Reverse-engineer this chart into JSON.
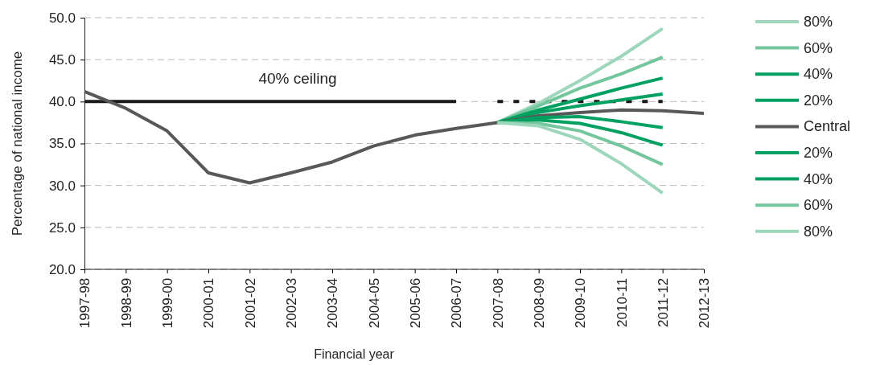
{
  "chart_data": {
    "type": "line",
    "xlabel": "Financial year",
    "ylabel": "Percentage of national income",
    "categories": [
      "1997-98",
      "1998-99",
      "1999-00",
      "2000-01",
      "2001-02",
      "2002-03",
      "2003-04",
      "2004-05",
      "2005-06",
      "2006-07",
      "2007-08",
      "2008-09",
      "2009-10",
      "2010-11",
      "2011-12",
      "2012-13"
    ],
    "ylim": [
      20,
      50
    ],
    "yticks": [
      {
        "value": 20,
        "label": "20.0"
      },
      {
        "value": 25,
        "label": "25.0"
      },
      {
        "value": 30,
        "label": "30.0"
      },
      {
        "value": 35,
        "label": "35.0"
      },
      {
        "value": 40,
        "label": "40.0"
      },
      {
        "value": 45,
        "label": "45.0"
      },
      {
        "value": 50,
        "label": "50.0"
      }
    ],
    "grid": "y",
    "legend": "right",
    "annotations": [
      "40% ceiling"
    ],
    "series": [
      {
        "color": "#1a1a1a",
        "line_style": "solid",
        "values": [
          40,
          40,
          40,
          40,
          40,
          40,
          40,
          40,
          40,
          40,
          null,
          null,
          null,
          null,
          null,
          null
        ]
      },
      {
        "color": "#1a1a1a",
        "line_style": "dotted",
        "values": [
          null,
          null,
          null,
          null,
          null,
          null,
          null,
          null,
          null,
          null,
          40,
          40,
          40,
          40,
          40,
          null
        ]
      },
      {
        "name": "80%",
        "color": "#9dd6bb",
        "values": [
          null,
          null,
          null,
          null,
          null,
          null,
          null,
          null,
          null,
          null,
          37.5,
          39.8,
          42.5,
          45.4,
          48.7,
          null
        ]
      },
      {
        "name": "60%",
        "color": "#74c69d",
        "values": [
          null,
          null,
          null,
          null,
          null,
          null,
          null,
          null,
          null,
          null,
          37.5,
          39.5,
          41.6,
          43.3,
          45.3,
          null
        ]
      },
      {
        "name": "40%",
        "color": "#00a160",
        "values": [
          null,
          null,
          null,
          null,
          null,
          null,
          null,
          null,
          null,
          null,
          37.5,
          39.0,
          40.3,
          41.6,
          42.8,
          null
        ]
      },
      {
        "name": "20%",
        "color": "#00a160",
        "values": [
          null,
          null,
          null,
          null,
          null,
          null,
          null,
          null,
          null,
          null,
          37.5,
          38.7,
          39.5,
          40.2,
          40.9,
          null
        ]
      },
      {
        "name": "Central",
        "color": "#58585a",
        "values": [
          41.2,
          39.2,
          36.5,
          31.5,
          30.3,
          31.5,
          32.8,
          34.7,
          36.0,
          36.8,
          37.5,
          38.3,
          38.7,
          39.0,
          38.9,
          38.6
        ]
      },
      {
        "name": "20%",
        "color": "#00a160",
        "values": [
          null,
          null,
          null,
          null,
          null,
          null,
          null,
          null,
          null,
          null,
          37.5,
          38.1,
          38.2,
          37.6,
          36.9,
          null
        ]
      },
      {
        "name": "40%",
        "color": "#00a160",
        "values": [
          null,
          null,
          null,
          null,
          null,
          null,
          null,
          null,
          null,
          null,
          37.5,
          37.8,
          37.4,
          36.3,
          34.8,
          null
        ]
      },
      {
        "name": "60%",
        "color": "#74c69d",
        "values": [
          null,
          null,
          null,
          null,
          null,
          null,
          null,
          null,
          null,
          null,
          37.5,
          37.4,
          36.5,
          34.7,
          32.5,
          null
        ]
      },
      {
        "name": "80%",
        "color": "#9dd6bb",
        "values": [
          null,
          null,
          null,
          null,
          null,
          null,
          null,
          null,
          null,
          null,
          37.5,
          37.1,
          35.5,
          32.6,
          29.1,
          null
        ]
      }
    ]
  }
}
